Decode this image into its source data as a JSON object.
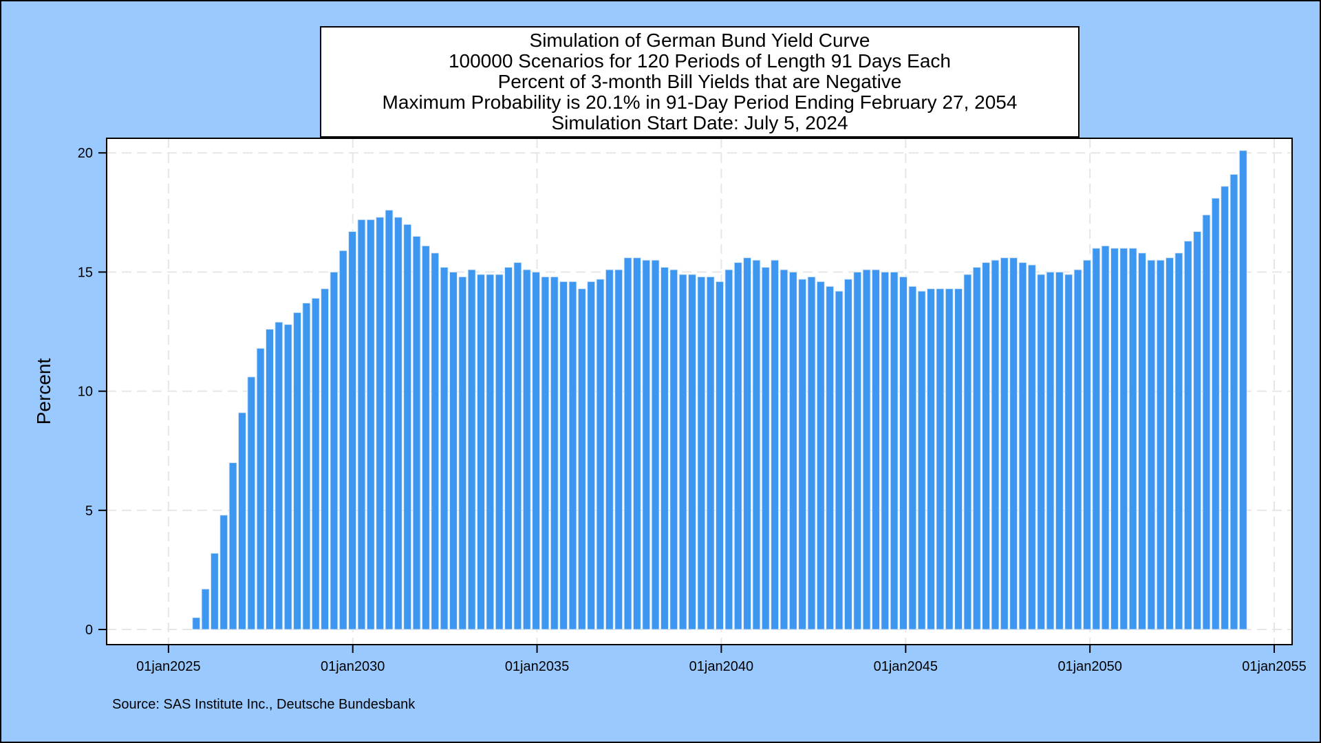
{
  "colors": {
    "background": "#99c9ff",
    "plot_background": "#ffffff",
    "bar_fill": "#3d97f0",
    "bar_outline": "#dce9f7",
    "grid": "#e6e6e6"
  },
  "chart_data": {
    "type": "bar",
    "title_lines": [
      "Simulation of German Bund Yield Curve",
      "100000 Scenarios for 120 Periods of Length 91 Days Each",
      "Percent of 3-month Bill Yields that are Negative",
      "Maximum Probability is 20.1% in 91-Day Period Ending February 27, 2054",
      "Simulation Start Date: July 5, 2024"
    ],
    "ylabel": "Percent",
    "xlabel": "",
    "ylim": [
      0,
      20.7
    ],
    "xlim": [
      "2024-03-01",
      "2055-01-01"
    ],
    "yticks": [
      0,
      5,
      10,
      15,
      20
    ],
    "xticks": [
      {
        "date": "2025-01-01",
        "label": "01jan2025"
      },
      {
        "date": "2030-01-01",
        "label": "01jan2030"
      },
      {
        "date": "2035-01-01",
        "label": "01jan2035"
      },
      {
        "date": "2040-01-01",
        "label": "01jan2040"
      },
      {
        "date": "2045-01-01",
        "label": "01jan2045"
      },
      {
        "date": "2050-01-01",
        "label": "01jan2050"
      },
      {
        "date": "2055-01-01",
        "label": "01jan2055"
      }
    ],
    "grid": true,
    "source": "Source: SAS Institute Inc., Deutsche Bundesbank",
    "x": [
      "2024-10-04",
      "2025-01-03",
      "2025-04-04",
      "2025-07-04",
      "2025-10-03",
      "2026-01-02",
      "2026-04-03",
      "2026-07-03",
      "2026-10-02",
      "2027-01-01",
      "2027-04-02",
      "2027-07-02",
      "2027-10-01",
      "2027-12-31",
      "2028-03-31",
      "2028-06-30",
      "2028-09-29",
      "2028-12-29",
      "2029-03-30",
      "2029-06-29",
      "2029-09-28",
      "2029-12-28",
      "2030-03-29",
      "2030-06-28",
      "2030-09-27",
      "2030-12-27",
      "2031-03-28",
      "2031-06-27",
      "2031-09-26",
      "2031-12-26",
      "2032-03-26",
      "2032-06-25",
      "2032-09-24",
      "2032-12-24",
      "2033-03-25",
      "2033-06-24",
      "2033-09-23",
      "2033-12-23",
      "2034-03-24",
      "2034-06-23",
      "2034-09-22",
      "2034-12-22",
      "2035-03-23",
      "2035-06-22",
      "2035-09-21",
      "2035-12-21",
      "2036-03-21",
      "2036-06-20",
      "2036-09-19",
      "2036-12-19",
      "2037-03-20",
      "2037-06-19",
      "2037-09-18",
      "2037-12-18",
      "2038-03-19",
      "2038-06-18",
      "2038-09-17",
      "2038-12-17",
      "2039-03-18",
      "2039-06-17",
      "2039-09-16",
      "2039-12-16",
      "2040-03-16",
      "2040-06-15",
      "2040-09-14",
      "2040-12-14",
      "2041-03-15",
      "2041-06-14",
      "2041-09-13",
      "2041-12-13",
      "2042-03-14",
      "2042-06-13",
      "2042-09-12",
      "2042-12-12",
      "2043-03-13",
      "2043-06-12",
      "2043-09-11",
      "2043-12-11",
      "2044-03-11",
      "2044-06-10",
      "2044-09-09",
      "2044-12-09",
      "2045-03-10",
      "2045-06-09",
      "2045-09-08",
      "2045-12-08",
      "2046-03-09",
      "2046-06-08",
      "2046-09-07",
      "2046-12-07",
      "2047-03-08",
      "2047-06-07",
      "2047-09-06",
      "2047-12-06",
      "2048-03-06",
      "2048-06-05",
      "2048-09-04",
      "2048-12-04",
      "2049-03-05",
      "2049-06-04",
      "2049-09-03",
      "2049-12-03",
      "2050-03-04",
      "2050-06-03",
      "2050-09-02",
      "2050-12-02",
      "2051-03-03",
      "2051-06-02",
      "2051-09-01",
      "2051-12-01",
      "2052-03-01",
      "2052-05-31",
      "2052-08-30",
      "2052-11-29",
      "2053-02-28",
      "2053-05-30",
      "2053-08-29",
      "2053-11-28",
      "2054-02-27",
      "2054-05-29"
    ],
    "values": [
      0,
      0,
      0,
      0,
      0.5,
      1.7,
      3.2,
      4.8,
      7.0,
      9.1,
      10.6,
      11.8,
      12.6,
      12.9,
      12.8,
      13.3,
      13.7,
      13.9,
      14.3,
      15.0,
      15.9,
      16.7,
      17.2,
      17.2,
      17.3,
      17.6,
      17.3,
      17.0,
      16.5,
      16.1,
      15.8,
      15.2,
      15.0,
      14.8,
      15.1,
      14.9,
      14.9,
      14.9,
      15.2,
      15.4,
      15.1,
      15.0,
      14.8,
      14.8,
      14.6,
      14.6,
      14.3,
      14.6,
      14.7,
      15.1,
      15.1,
      15.6,
      15.6,
      15.5,
      15.5,
      15.2,
      15.1,
      14.9,
      14.9,
      14.8,
      14.8,
      14.6,
      15.1,
      15.4,
      15.6,
      15.5,
      15.2,
      15.5,
      15.1,
      15.0,
      14.7,
      14.8,
      14.6,
      14.4,
      14.2,
      14.7,
      15.0,
      15.1,
      15.1,
      15.0,
      15.0,
      14.8,
      14.4,
      14.2,
      14.3,
      14.3,
      14.3,
      14.3,
      14.9,
      15.2,
      15.4,
      15.5,
      15.6,
      15.6,
      15.4,
      15.3,
      14.9,
      15.0,
      15.0,
      14.9,
      15.1,
      15.5,
      16.0,
      16.1,
      16.0,
      16.0,
      16.0,
      15.8,
      15.5,
      15.5,
      15.6,
      15.8,
      16.3,
      16.7,
      17.4,
      18.1,
      18.6,
      19.1,
      20.1,
      0
    ]
  }
}
